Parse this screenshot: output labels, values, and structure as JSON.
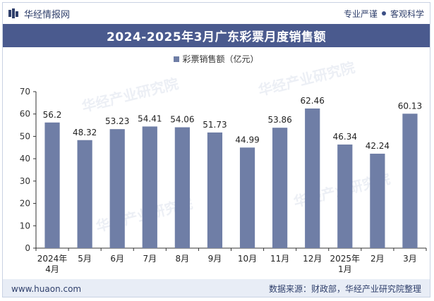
{
  "header": {
    "brand": "华经情报网",
    "tagline_left": "专业严谨",
    "tagline_right": "客观科学"
  },
  "watermark_text": "华经产业研究院",
  "chart_data": {
    "type": "bar",
    "title": "2024-2025年3月广东彩票月度销售额",
    "series": [
      {
        "name": "彩票销售额（亿元）",
        "color": "#6f7ea6",
        "values": [
          56.2,
          48.32,
          53.23,
          54.41,
          54.06,
          51.73,
          44.99,
          53.86,
          62.46,
          46.34,
          42.24,
          60.13
        ]
      }
    ],
    "categories": [
      [
        "2024年",
        "4月"
      ],
      [
        "5月"
      ],
      [
        "6月"
      ],
      [
        "7月"
      ],
      [
        "8月"
      ],
      [
        "9月"
      ],
      [
        "10月"
      ],
      [
        "11月"
      ],
      [
        "12月"
      ],
      [
        "2025年",
        "1月"
      ],
      [
        "2月"
      ],
      [
        "3月"
      ]
    ],
    "data_labels": [
      "56.2",
      "48.32",
      "53.23",
      "54.41",
      "54.06",
      "51.73",
      "44.99",
      "53.86",
      "62.46",
      "46.34",
      "42.24",
      "60.13"
    ],
    "yticks": [
      0,
      10,
      20,
      30,
      40,
      50,
      60,
      70
    ],
    "ylim": [
      0,
      70
    ],
    "grid": false,
    "legend": "top-center"
  },
  "footer": {
    "website": "www.huaon.com",
    "source": "数据来源：财政部，华经产业研究院整理"
  }
}
